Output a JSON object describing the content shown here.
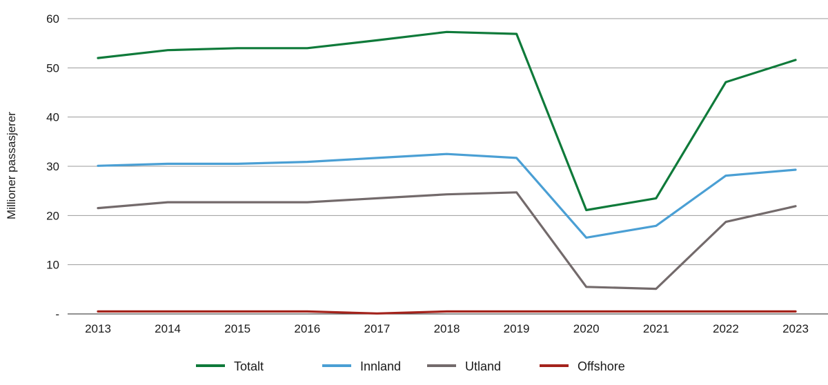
{
  "chart_data": {
    "type": "line",
    "ylabel": "Millioner passasjerer",
    "ylim": [
      0,
      60
    ],
    "yticks": [
      {
        "value": 0,
        "label": "-"
      },
      {
        "value": 10,
        "label": "10"
      },
      {
        "value": 20,
        "label": "20"
      },
      {
        "value": 30,
        "label": "30"
      },
      {
        "value": 40,
        "label": "40"
      },
      {
        "value": 50,
        "label": "50"
      },
      {
        "value": 60,
        "label": "60"
      }
    ],
    "grid": true,
    "legend_position": "bottom",
    "x": [
      "2013",
      "2014",
      "2015",
      "2016",
      "2017",
      "2018",
      "2019",
      "2020",
      "2021",
      "2022",
      "2023"
    ],
    "series": [
      {
        "name": "Totalt",
        "color": "#0f7a3a",
        "values": [
          52.0,
          53.6,
          54.0,
          54.0,
          55.6,
          57.3,
          56.9,
          21.1,
          23.5,
          47.1,
          51.6
        ]
      },
      {
        "name": "Innland",
        "color": "#4a9fd4",
        "values": [
          30.1,
          30.5,
          30.5,
          30.9,
          31.7,
          32.5,
          31.7,
          15.5,
          17.9,
          28.1,
          29.3
        ]
      },
      {
        "name": "Utland",
        "color": "#736a6b",
        "values": [
          21.5,
          22.7,
          22.7,
          22.7,
          23.5,
          24.3,
          24.7,
          5.5,
          5.1,
          18.7,
          21.9
        ]
      },
      {
        "name": "Offshore",
        "color": "#a4231c",
        "values": [
          0.5,
          0.5,
          0.5,
          0.5,
          0.1,
          0.5,
          0.5,
          0.5,
          0.5,
          0.5,
          0.5
        ]
      }
    ]
  }
}
